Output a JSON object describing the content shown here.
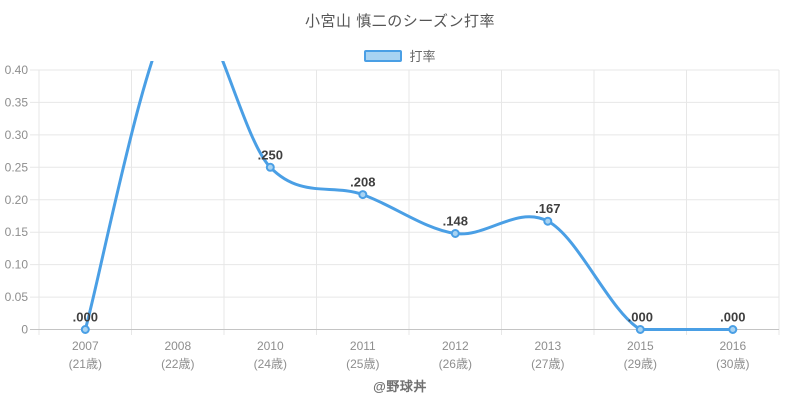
{
  "title": "小宮山 慎二のシーズン打率",
  "legend": {
    "label": "打率",
    "position": "top"
  },
  "watermark": "@野球丼",
  "chart_data": {
    "type": "line",
    "title": "小宮山 慎二のシーズン打率",
    "series": [
      {
        "name": "打率",
        "values": [
          0,
          null,
          0.25,
          0.208,
          0.148,
          0.167,
          0,
          0
        ],
        "point_labels": [
          ".000",
          null,
          ".250",
          ".208",
          ".148",
          ".167",
          ".000",
          ".000"
        ],
        "clipped_note": "2008 point rises above the y-axis maximum and the line is clipped at the top of the plot"
      }
    ],
    "categories": [
      {
        "year": "2007",
        "age": "(21歳)"
      },
      {
        "year": "2008",
        "age": "(22歳)"
      },
      {
        "year": "2010",
        "age": "(24歳)"
      },
      {
        "year": "2011",
        "age": "(25歳)"
      },
      {
        "year": "2012",
        "age": "(26歳)"
      },
      {
        "year": "2013",
        "age": "(27歳)"
      },
      {
        "year": "2015",
        "age": "(29歳)"
      },
      {
        "year": "2016",
        "age": "(30歳)"
      }
    ],
    "xlabel": "",
    "ylabel": "",
    "ylim": [
      0,
      0.4
    ],
    "ytick_step": 0.05,
    "ytick_labels": [
      "0",
      "0.05",
      "0.10",
      "0.15",
      "0.20",
      "0.25",
      "0.30",
      "0.35",
      "0.40"
    ],
    "grid": true,
    "legend_position": "top",
    "colors": {
      "line": "#4a9fe5",
      "point_fill": "#a8d3f2",
      "grid": "#e7e7e7",
      "x_axis_line": "#c4c4c4",
      "tick_text": "#8e8e8e",
      "data_label": "#3f3f3f"
    }
  }
}
